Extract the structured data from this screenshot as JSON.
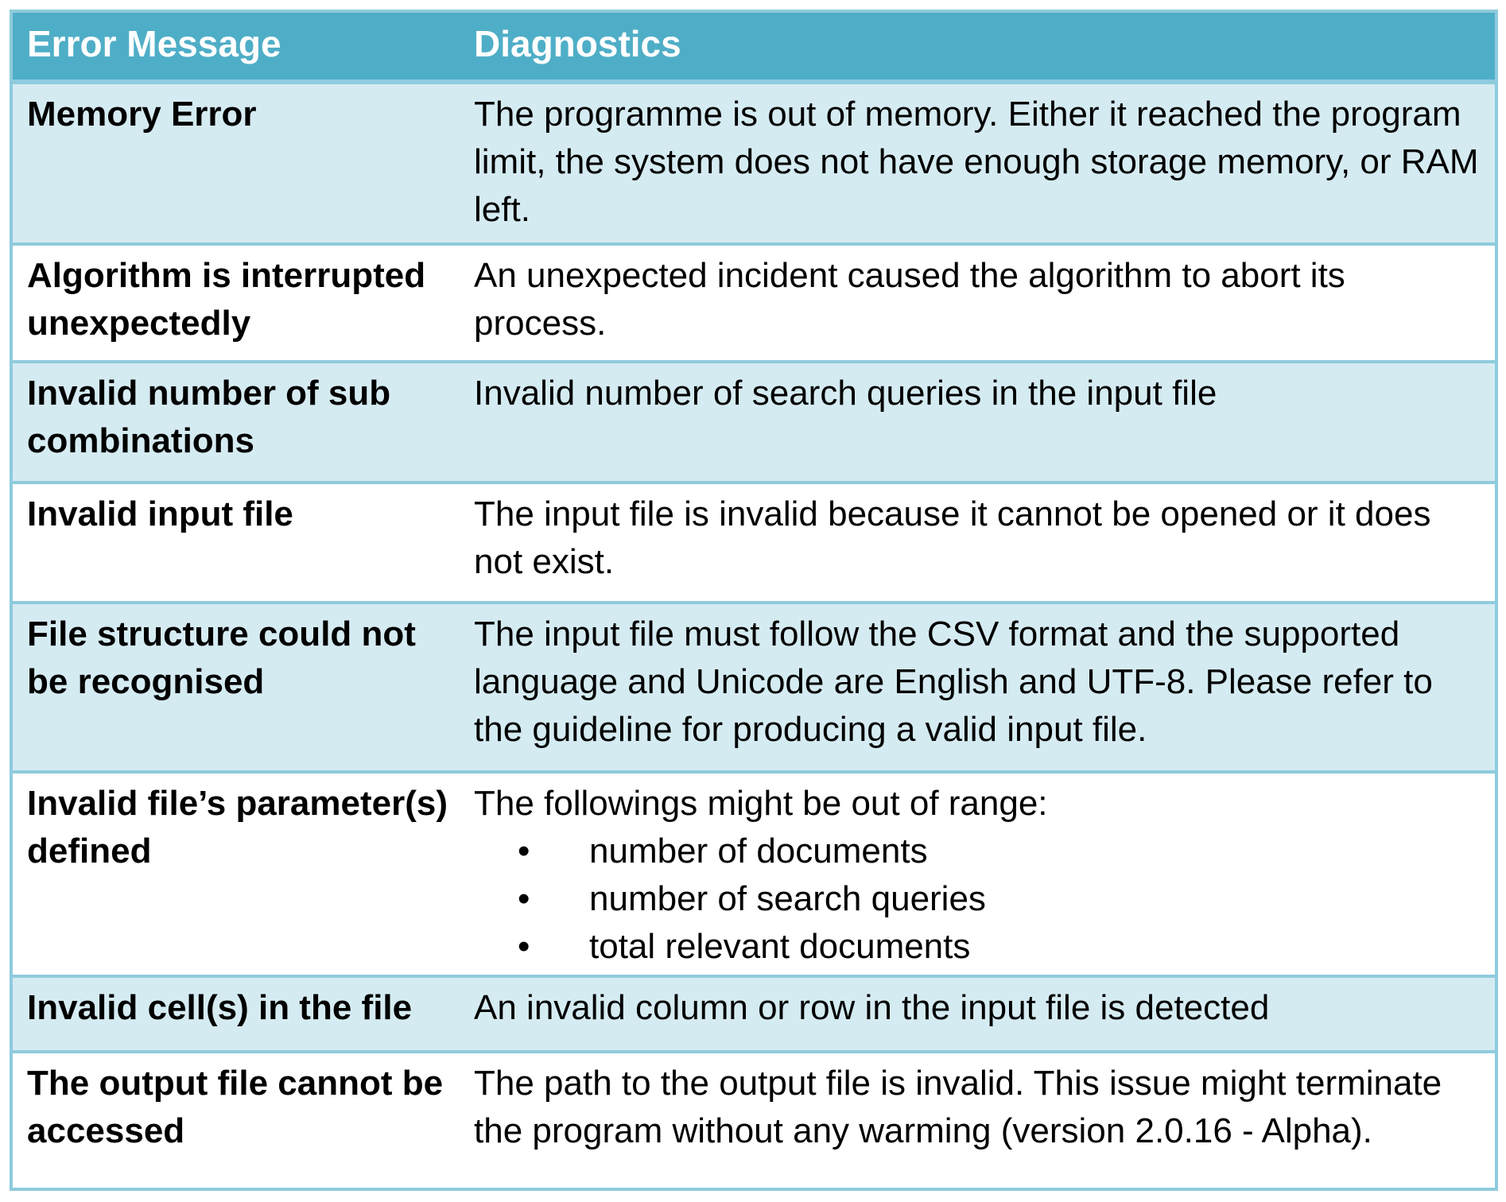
{
  "table": {
    "header": {
      "col1": "Error Message",
      "col2": "Diagnostics"
    },
    "rows": [
      {
        "error": "Memory Error",
        "diagnostic": "The programme is out of memory. Either it reached the program limit, the system does not have enough storage memory, or RAM left."
      },
      {
        "error": "Algorithm is interrupted unexpectedly",
        "diagnostic": "An unexpected incident caused the algorithm to abort its process."
      },
      {
        "error": "Invalid number of sub combinations",
        "diagnostic": "Invalid number of search queries in the input file"
      },
      {
        "error": "Invalid input file",
        "diagnostic": "The input file is invalid because it cannot be opened or it does not exist."
      },
      {
        "error": "File structure could not be recognised",
        "diagnostic": "The input file must follow the CSV format and the supported language and Unicode are English and UTF-8. Please refer to the guideline for producing a valid input file."
      },
      {
        "error": "Invalid file’s parameter(s) defined",
        "diagnostic": "The followings might be out of range:",
        "bullets": [
          "number of documents",
          "number of search queries",
          "total relevant documents"
        ]
      },
      {
        "error": "Invalid cell(s) in the file",
        "diagnostic": "An invalid column or row in the input file is detected"
      },
      {
        "error": "The output file cannot be accessed",
        "diagnostic": "The path to the output file is invalid. This issue might terminate the program without any warming (version 2.0.16 - Alpha)."
      }
    ],
    "bullet_glyph": "•",
    "colors": {
      "header_bg": "#4faec7",
      "band_light": "#d5ebf2",
      "border": "#8ecbdd"
    }
  }
}
